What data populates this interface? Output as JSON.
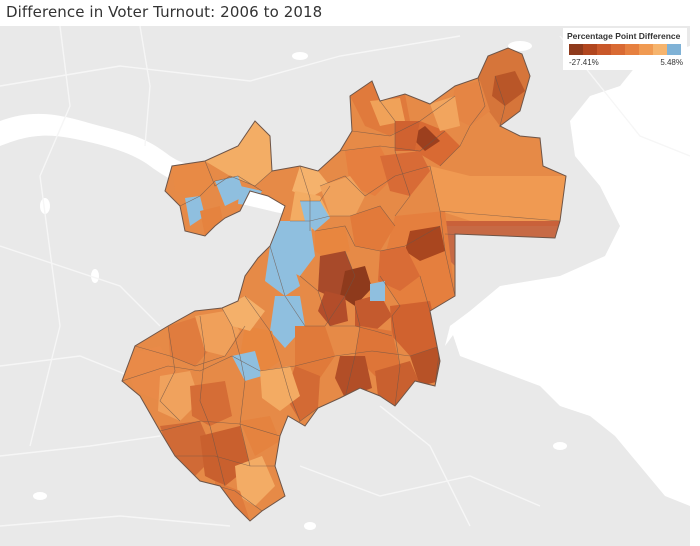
{
  "title": "Difference in Voter Turnout: 2006 to 2018",
  "legend": {
    "title": "Percentage Point Difference",
    "min_label": "-27.41%",
    "max_label": "5.48%",
    "palette": [
      "#8e3a1c",
      "#b1461f",
      "#c9582a",
      "#d96a33",
      "#e68040",
      "#f09a52",
      "#f6b46d",
      "#7fb2d6"
    ]
  },
  "map": {
    "basemap_land": "#e9e9e9",
    "basemap_water": "#ffffff",
    "basemap_roads": "#f7f7f7",
    "precinct_border": "#6e5548",
    "positive_color": "#8fbfdf"
  }
}
